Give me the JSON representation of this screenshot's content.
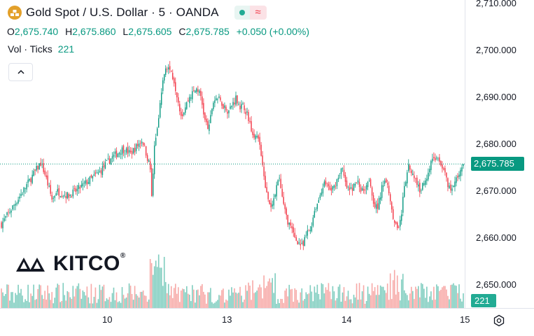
{
  "header": {
    "symbol_title": "Gold Spot / U.S. Dollar · 5 · OANDA",
    "ohlc": {
      "o_label": "O",
      "o": "2,675.740",
      "h_label": "H",
      "h": "2,675.860",
      "l_label": "L",
      "l": "2,675.605",
      "c_label": "C",
      "c": "2,675.785",
      "change": "+0.050 (+0.00%)"
    },
    "volume_label": "Vol · Ticks",
    "volume_value": "221"
  },
  "price_label": "2,675.785",
  "volume_label": "221",
  "logo_text": "KITCO",
  "logo_mark": "®",
  "colors": {
    "up": "#089981",
    "down": "#f23645",
    "vol_up": "#7fcdbf",
    "vol_down": "#f7a9a7",
    "accent": "#e3a02a"
  },
  "icons": {
    "symbol": "gold-bars-icon",
    "collapse": "chevron-up-icon",
    "settings": "gear-icon"
  },
  "chart_data": {
    "type": "candlestick",
    "title": "Gold Spot / U.S. Dollar · 5 · OANDA",
    "y_ticks": [
      "2,710.000",
      "2,700.000",
      "2,690.000",
      "2,680.000",
      "2,670.000",
      "2,660.000",
      "2,650.000"
    ],
    "y_tick_values": [
      2710,
      2700,
      2690,
      2680,
      2670,
      2660,
      2650
    ],
    "x_ticks": [
      "10",
      "13",
      "14",
      "15"
    ],
    "ylim": [
      2645,
      2711
    ],
    "last_price": 2675.785,
    "close_path": [
      [
        0,
        2663
      ],
      [
        4,
        2668
      ],
      [
        7,
        2672
      ],
      [
        10,
        2676
      ],
      [
        11,
        2674
      ],
      [
        13,
        2668
      ],
      [
        14,
        2670
      ],
      [
        17,
        2669
      ],
      [
        19,
        2670
      ],
      [
        22,
        2672
      ],
      [
        25,
        2674
      ],
      [
        28,
        2677
      ],
      [
        31,
        2679
      ],
      [
        33,
        2678
      ],
      [
        35,
        2680
      ],
      [
        36,
        2681
      ],
      [
        38,
        2675
      ],
      [
        38.5,
        2667
      ],
      [
        39,
        2680
      ],
      [
        40,
        2684
      ],
      [
        41,
        2692
      ],
      [
        42,
        2697
      ],
      [
        43,
        2696
      ],
      [
        44,
        2694
      ],
      [
        45,
        2690
      ],
      [
        46,
        2686
      ],
      [
        48,
        2690
      ],
      [
        50,
        2692
      ],
      [
        51,
        2690
      ],
      [
        52,
        2685
      ],
      [
        53,
        2683
      ],
      [
        54,
        2689
      ],
      [
        55,
        2690
      ],
      [
        57,
        2688
      ],
      [
        58,
        2687
      ],
      [
        60,
        2690
      ],
      [
        61,
        2688
      ],
      [
        62,
        2688
      ],
      [
        63,
        2686
      ],
      [
        64,
        2683
      ],
      [
        66,
        2680
      ],
      [
        67,
        2674
      ],
      [
        68,
        2668
      ],
      [
        69,
        2666
      ],
      [
        70,
        2670
      ],
      [
        71,
        2673
      ],
      [
        72,
        2667
      ],
      [
        73,
        2664
      ],
      [
        74,
        2662
      ],
      [
        75,
        2660
      ],
      [
        76,
        2659
      ],
      [
        77,
        2658
      ],
      [
        78,
        2661
      ],
      [
        79,
        2662
      ],
      [
        80,
        2666
      ],
      [
        81,
        2668
      ],
      [
        82,
        2671
      ],
      [
        83,
        2672
      ],
      [
        84,
        2670
      ],
      [
        85,
        2671
      ],
      [
        86,
        2673
      ],
      [
        87,
        2675
      ],
      [
        88,
        2671
      ],
      [
        89,
        2670
      ],
      [
        90,
        2671
      ],
      [
        91,
        2672
      ],
      [
        92,
        2670
      ],
      [
        93,
        2671
      ],
      [
        94,
        2673
      ],
      [
        95,
        2668
      ],
      [
        96,
        2666
      ],
      [
        97,
        2670
      ],
      [
        98,
        2673
      ],
      [
        99,
        2670
      ],
      [
        100,
        2665
      ],
      [
        101,
        2662
      ],
      [
        102,
        2664
      ],
      [
        103,
        2671
      ],
      [
        104,
        2675
      ],
      [
        105,
        2674
      ],
      [
        106,
        2672
      ],
      [
        107,
        2670
      ],
      [
        108,
        2672
      ],
      [
        109,
        2674
      ],
      [
        110,
        2677
      ],
      [
        111,
        2677
      ],
      [
        112,
        2676
      ],
      [
        113,
        2675
      ],
      [
        114,
        2671
      ],
      [
        115,
        2670
      ],
      [
        116,
        2672
      ],
      [
        117,
        2674
      ],
      [
        118,
        2675.785
      ]
    ],
    "volume_ticks": "221"
  }
}
